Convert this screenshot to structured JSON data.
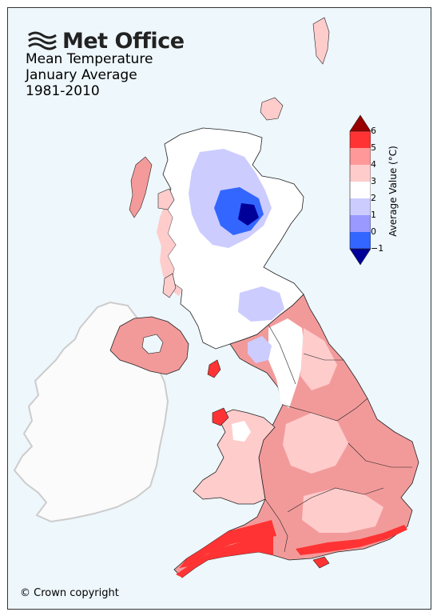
{
  "logo": {
    "brand": "Met Office",
    "icon": "met-office-wave-icon"
  },
  "title": {
    "line1": "Mean Temperature",
    "line2": "January Average",
    "line3": "1981-2010"
  },
  "copyright": "© Crown copyright",
  "legend": {
    "label": "Average Value (°C)",
    "ticks": [
      "6",
      "5",
      "4",
      "3",
      "2",
      "1",
      "0",
      "−1"
    ],
    "bins": [
      {
        "range": [
          5,
          6
        ],
        "color": "#ff3333"
      },
      {
        "range": [
          4,
          5
        ],
        "color": "#ff9999"
      },
      {
        "range": [
          3,
          4
        ],
        "color": "#ffcccc"
      },
      {
        "range": [
          2,
          3
        ],
        "color": "#ffffff"
      },
      {
        "range": [
          1,
          2
        ],
        "color": "#ccccff"
      },
      {
        "range": [
          0,
          1
        ],
        "color": "#9999ff"
      },
      {
        "range": [
          -1,
          0
        ],
        "color": "#3366ff"
      }
    ],
    "over_color": "#990000",
    "under_color": "#000099"
  },
  "map_colors": {
    "sea": "#eef7fb",
    "ireland": "#fbfbfb",
    "ireland_outline": "#cccccc",
    "boundary": "#222222"
  }
}
